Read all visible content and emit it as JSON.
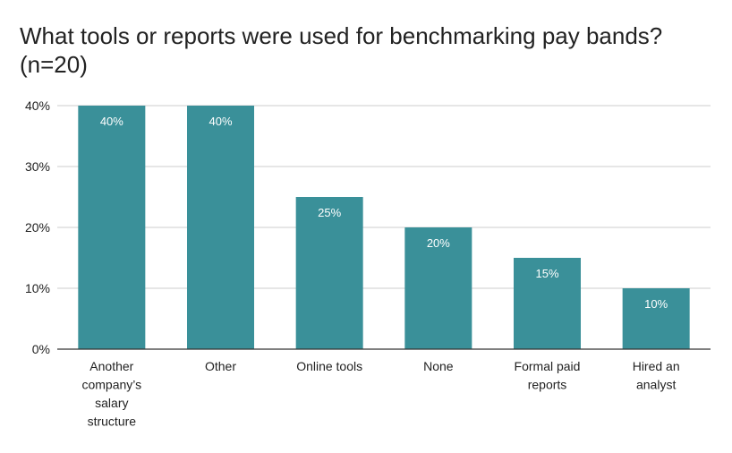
{
  "chart_data": {
    "type": "bar",
    "title_line1": "What tools or reports were used for benchmarking pay bands?",
    "title_line2": "(n=20)",
    "categories": [
      [
        "Another",
        "company’s",
        "salary",
        "structure"
      ],
      [
        "Other"
      ],
      [
        "Online tools"
      ],
      [
        "None"
      ],
      [
        "Formal paid",
        "reports"
      ],
      [
        "Hired an",
        "analyst"
      ]
    ],
    "values": [
      40,
      40,
      25,
      20,
      15,
      10
    ],
    "data_labels": [
      "40%",
      "40%",
      "25%",
      "20%",
      "15%",
      "10%"
    ],
    "y_ticks": [
      {
        "value": 0,
        "label": "0%"
      },
      {
        "value": 10,
        "label": "10%"
      },
      {
        "value": 20,
        "label": "20%"
      },
      {
        "value": 30,
        "label": "30%"
      },
      {
        "value": 40,
        "label": "40%"
      }
    ],
    "ylim": [
      0,
      40
    ],
    "xlabel": "",
    "ylabel": "",
    "grid": true,
    "legend": "none",
    "bar_color": "#3a9099",
    "grid_color": "#cccccc",
    "axis_color": "#333333"
  }
}
